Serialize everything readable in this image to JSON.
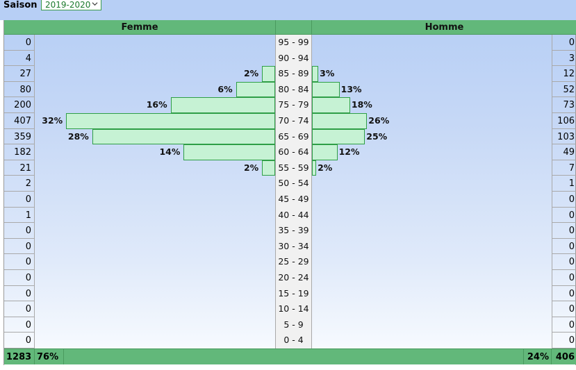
{
  "filter": {
    "label": "Saison :",
    "selected": "2019-2020"
  },
  "icons": {
    "dropdown": "chevron-down-icon"
  },
  "colors": {
    "header_green": "#62b87a",
    "bar_fill": "#c6f2d4",
    "bar_border": "#2e9e46",
    "bg_top": "#b7cff5"
  },
  "headers": {
    "female": "Femme",
    "male": "Homme"
  },
  "totals": {
    "female_count": "1283",
    "female_pct": "76%",
    "male_pct": "24%",
    "male_count": "406"
  },
  "chart_data": {
    "type": "bar",
    "orientation": "horizontal-population-pyramid",
    "categories": [
      "95 - 99",
      "90 - 94",
      "85 - 89",
      "80 - 84",
      "75 - 79",
      "70 - 74",
      "65 - 69",
      "60 - 64",
      "55 - 59",
      "50 - 54",
      "45 - 49",
      "40 - 44",
      "35 - 39",
      "30 - 34",
      "25 - 29",
      "20 - 24",
      "15 - 19",
      "10 - 14",
      "5 - 9",
      "0 - 4"
    ],
    "series": [
      {
        "name": "Femme",
        "values": [
          0,
          4,
          27,
          80,
          200,
          407,
          359,
          182,
          21,
          2,
          0,
          1,
          0,
          0,
          0,
          0,
          0,
          0,
          0,
          0
        ],
        "bar_share": [
          0,
          0,
          2,
          6,
          16,
          32,
          28,
          14,
          2,
          0,
          0,
          0,
          0,
          0,
          0,
          0,
          0,
          0,
          0,
          0
        ],
        "pct_labels": [
          "",
          "",
          "2%",
          "6%",
          "16%",
          "32%",
          "28%",
          "14%",
          "2%",
          "",
          "",
          "",
          "",
          "",
          "",
          "",
          "",
          "",
          "",
          ""
        ]
      },
      {
        "name": "Homme",
        "values": [
          0,
          3,
          12,
          52,
          73,
          106,
          103,
          49,
          7,
          1,
          0,
          0,
          0,
          0,
          0,
          0,
          0,
          0,
          0,
          0
        ],
        "bar_share": [
          0,
          0,
          3,
          13,
          18,
          26,
          25,
          12,
          2,
          0,
          0,
          0,
          0,
          0,
          0,
          0,
          0,
          0,
          0,
          0
        ],
        "pct_labels": [
          "",
          "",
          "3%",
          "13%",
          "18%",
          "26%",
          "25%",
          "12%",
          "2%",
          "",
          "",
          "",
          "",
          "",
          "",
          "",
          "",
          "",
          "",
          ""
        ]
      }
    ],
    "legend": "none",
    "grid": false
  }
}
